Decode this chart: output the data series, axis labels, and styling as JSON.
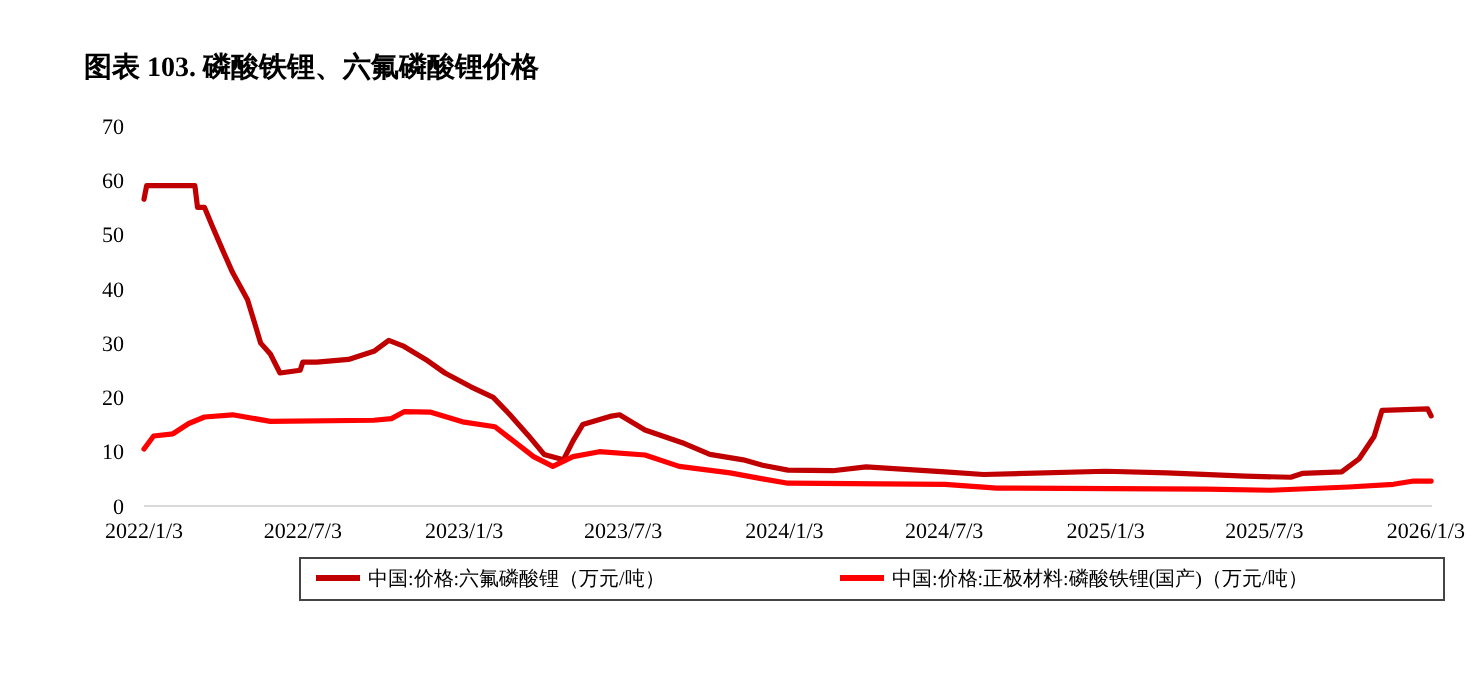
{
  "chart_data": {
    "type": "line",
    "title": "图表 103. 磷酸铁锂、六氟磷酸锂价格",
    "xlim": [
      "2022-01-03",
      "2026-01-10"
    ],
    "xticks": [
      {
        "value": "2022-01-03",
        "label": "2022/1/3"
      },
      {
        "value": "2022-07-03",
        "label": "2022/7/3"
      },
      {
        "value": "2023-01-03",
        "label": "2023/1/3"
      },
      {
        "value": "2023-07-03",
        "label": "2023/7/3"
      },
      {
        "value": "2024-01-03",
        "label": "2024/1/3"
      },
      {
        "value": "2024-07-03",
        "label": "2024/7/3"
      },
      {
        "value": "2025-01-03",
        "label": "2025/1/3"
      },
      {
        "value": "2025-07-03",
        "label": "2025/7/3"
      },
      {
        "value": "2026-01-03",
        "label": "2026/1/3"
      }
    ],
    "ylim": [
      0,
      70
    ],
    "yticks": [
      0,
      10,
      20,
      30,
      40,
      50,
      60,
      70
    ],
    "grid": false,
    "legend": "bottom",
    "line_style": "solid",
    "marker": "none",
    "series": [
      {
        "name": "中国:价格:六氟磷酸锂（万元/吨）",
        "color": "#c00000",
        "x": [
          "2022-01-03",
          "2022-01-06",
          "2022-03-02",
          "2022-03-05",
          "2022-03-13",
          "2022-03-22",
          "2022-04-03",
          "2022-04-14",
          "2022-05-01",
          "2022-05-16",
          "2022-05-27",
          "2022-06-07",
          "2022-06-30",
          "2022-07-03",
          "2022-07-19",
          "2022-08-24",
          "2022-09-22",
          "2022-10-09",
          "2022-10-25",
          "2022-11-20",
          "2022-12-12",
          "2023-01-10",
          "2023-02-05",
          "2023-02-23",
          "2023-03-17",
          "2023-04-04",
          "2023-04-26",
          "2023-05-07",
          "2023-05-18",
          "2023-06-18",
          "2023-06-29",
          "2023-07-28",
          "2023-09-11",
          "2023-10-10",
          "2023-11-17",
          "2023-12-09",
          "2024-01-07",
          "2024-02-27",
          "2024-04-05",
          "2024-07-04",
          "2024-08-17",
          "2025-01-03",
          "2025-03-14",
          "2025-06-11",
          "2025-08-02",
          "2025-08-15",
          "2025-09-29",
          "2025-10-19",
          "2025-11-05",
          "2025-11-14",
          "2026-01-05",
          "2026-01-09"
        ],
        "values": [
          56.5,
          59,
          59,
          55,
          55,
          51.5,
          47,
          43,
          38,
          30,
          28,
          24.5,
          25,
          26.5,
          26.5,
          27,
          28.5,
          30.5,
          29.5,
          27,
          24.5,
          22,
          20,
          17,
          13,
          9.5,
          8.5,
          12,
          15,
          16.5,
          16.8,
          14,
          11.5,
          9.5,
          8.5,
          7.5,
          6.6,
          6.5,
          7.2,
          6.3,
          5.8,
          6.4,
          6.1,
          5.5,
          5.3,
          6,
          6.3,
          8.7,
          12.8,
          17.6,
          17.9,
          16.6
        ]
      },
      {
        "name": "中国:价格:正极材料:磷酸铁锂(国产)（万元/吨）",
        "color": "#ff0000",
        "x": [
          "2022-01-03",
          "2022-01-14",
          "2022-02-05",
          "2022-02-23",
          "2022-03-13",
          "2022-04-14",
          "2022-05-27",
          "2022-09-22",
          "2022-10-12",
          "2022-10-27",
          "2022-11-25",
          "2023-01-01",
          "2023-02-07",
          "2023-03-23",
          "2023-04-14",
          "2023-05-07",
          "2023-06-06",
          "2023-07-28",
          "2023-09-05",
          "2023-11-02",
          "2023-12-09",
          "2024-01-07",
          "2024-07-04",
          "2024-09-01",
          "2025-04-27",
          "2025-07-10",
          "2025-10-07",
          "2025-11-27",
          "2025-12-20",
          "2026-01-09"
        ],
        "values": [
          10.5,
          12.9,
          13.3,
          15.2,
          16.4,
          16.8,
          15.6,
          15.8,
          16.1,
          17.4,
          17.3,
          15.5,
          14.6,
          9.1,
          7.3,
          9.1,
          10,
          9.4,
          7.3,
          6.1,
          5,
          4.2,
          4,
          3.3,
          3.1,
          2.9,
          3.5,
          4,
          4.6,
          4.6
        ]
      }
    ]
  }
}
